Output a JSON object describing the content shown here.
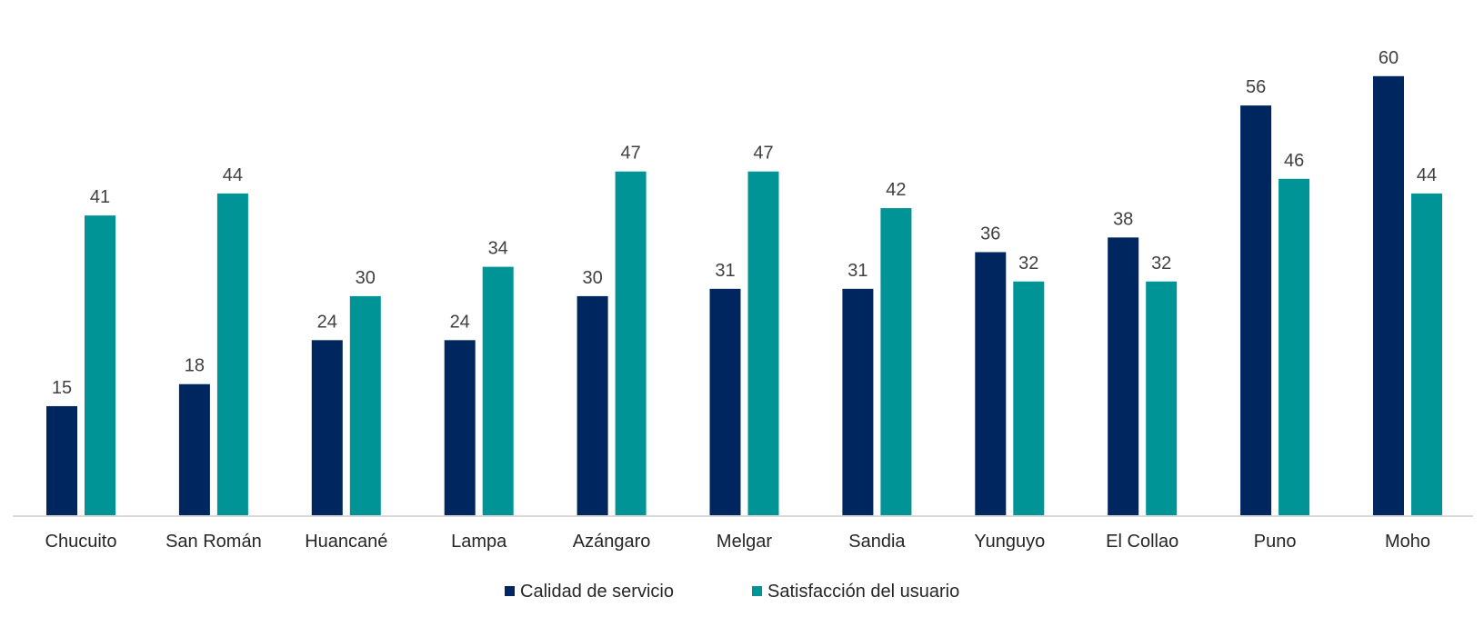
{
  "chart_data": {
    "type": "bar",
    "title": "",
    "xlabel": "",
    "ylabel": "",
    "ylim": [
      0,
      60
    ],
    "grid": false,
    "legend_placement": "bottom",
    "categories": [
      "Chucuito",
      "San Román",
      "Huancané",
      "Lampa",
      "Azángaro",
      "Melgar",
      "Sandia",
      "Yunguyo",
      "El Collao",
      "Puno",
      "Moho"
    ],
    "series": [
      {
        "name": "Calidad de servicio",
        "color": "#002660",
        "values": [
          15,
          18,
          24,
          24,
          30,
          31,
          31,
          36,
          38,
          56,
          60
        ]
      },
      {
        "name": "Satisfacción del usuario",
        "color": "#009496",
        "values": [
          41,
          44,
          30,
          34,
          47,
          47,
          42,
          32,
          32,
          46,
          44
        ]
      }
    ]
  }
}
